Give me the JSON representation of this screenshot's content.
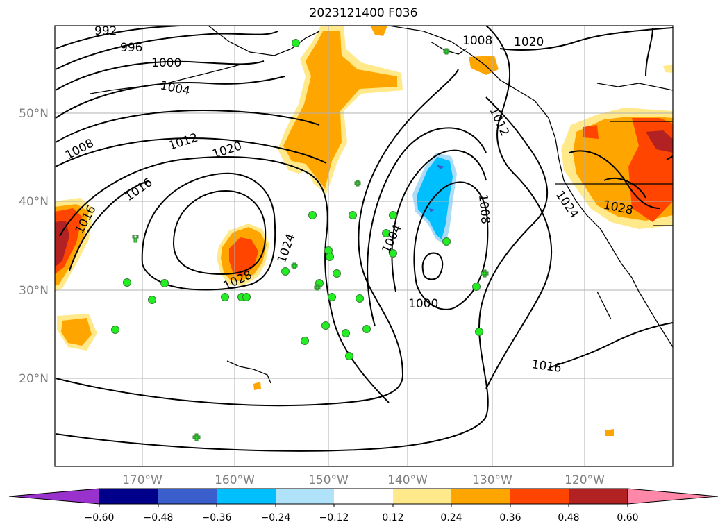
{
  "title": "2023121400 F036",
  "map": {
    "lat_ticks": [
      {
        "label": "50°N",
        "lat": 50
      },
      {
        "label": "40°N",
        "lat": 40
      },
      {
        "label": "30°N",
        "lat": 30
      },
      {
        "label": "20°N",
        "lat": 20
      }
    ],
    "lon_ticks": [
      {
        "label": "170°W",
        "lon": -170
      },
      {
        "label": "160°W",
        "lon": -160
      },
      {
        "label": "150°W",
        "lon": -150
      },
      {
        "label": "140°W",
        "lon": -140
      },
      {
        "label": "130°W",
        "lon": -130
      },
      {
        "label": "120°W",
        "lon": -120
      }
    ],
    "contour_labels": [
      "992",
      "996",
      "1000",
      "1004",
      "1008",
      "1012",
      "1016",
      "1020",
      "1024",
      "1028",
      "1000",
      "1004",
      "1008",
      "1012",
      "1016",
      "1020",
      "1024",
      "1028",
      "1016",
      "1008"
    ],
    "colors": {
      "pos_012_024": "#ffe98a",
      "pos_024_036": "#ffa500",
      "pos_036_048": "#ff4500",
      "pos_048_060": "#b22222",
      "pos_060_plus": "#ff88a8",
      "neg_012_024": "#aadcf7",
      "neg_024_036": "#00bfff",
      "neg_036_048": "#3a5fcd",
      "neg_048_060": "#00008b",
      "neg_060_minus": "#9932cc",
      "station_marker": "#22ee22"
    }
  },
  "colorbar": {
    "ticks": [
      "−0.60",
      "−0.48",
      "−0.36",
      "−0.24",
      "−0.12",
      "0.12",
      "0.24",
      "0.36",
      "0.48",
      "0.60"
    ],
    "segments": [
      "#9932cc",
      "#00008b",
      "#3a5fcd",
      "#00bfff",
      "#b0e2fa",
      "#ffffff",
      "#ffe98a",
      "#ffa500",
      "#ff4500",
      "#b22222",
      "#ff88a8"
    ]
  }
}
